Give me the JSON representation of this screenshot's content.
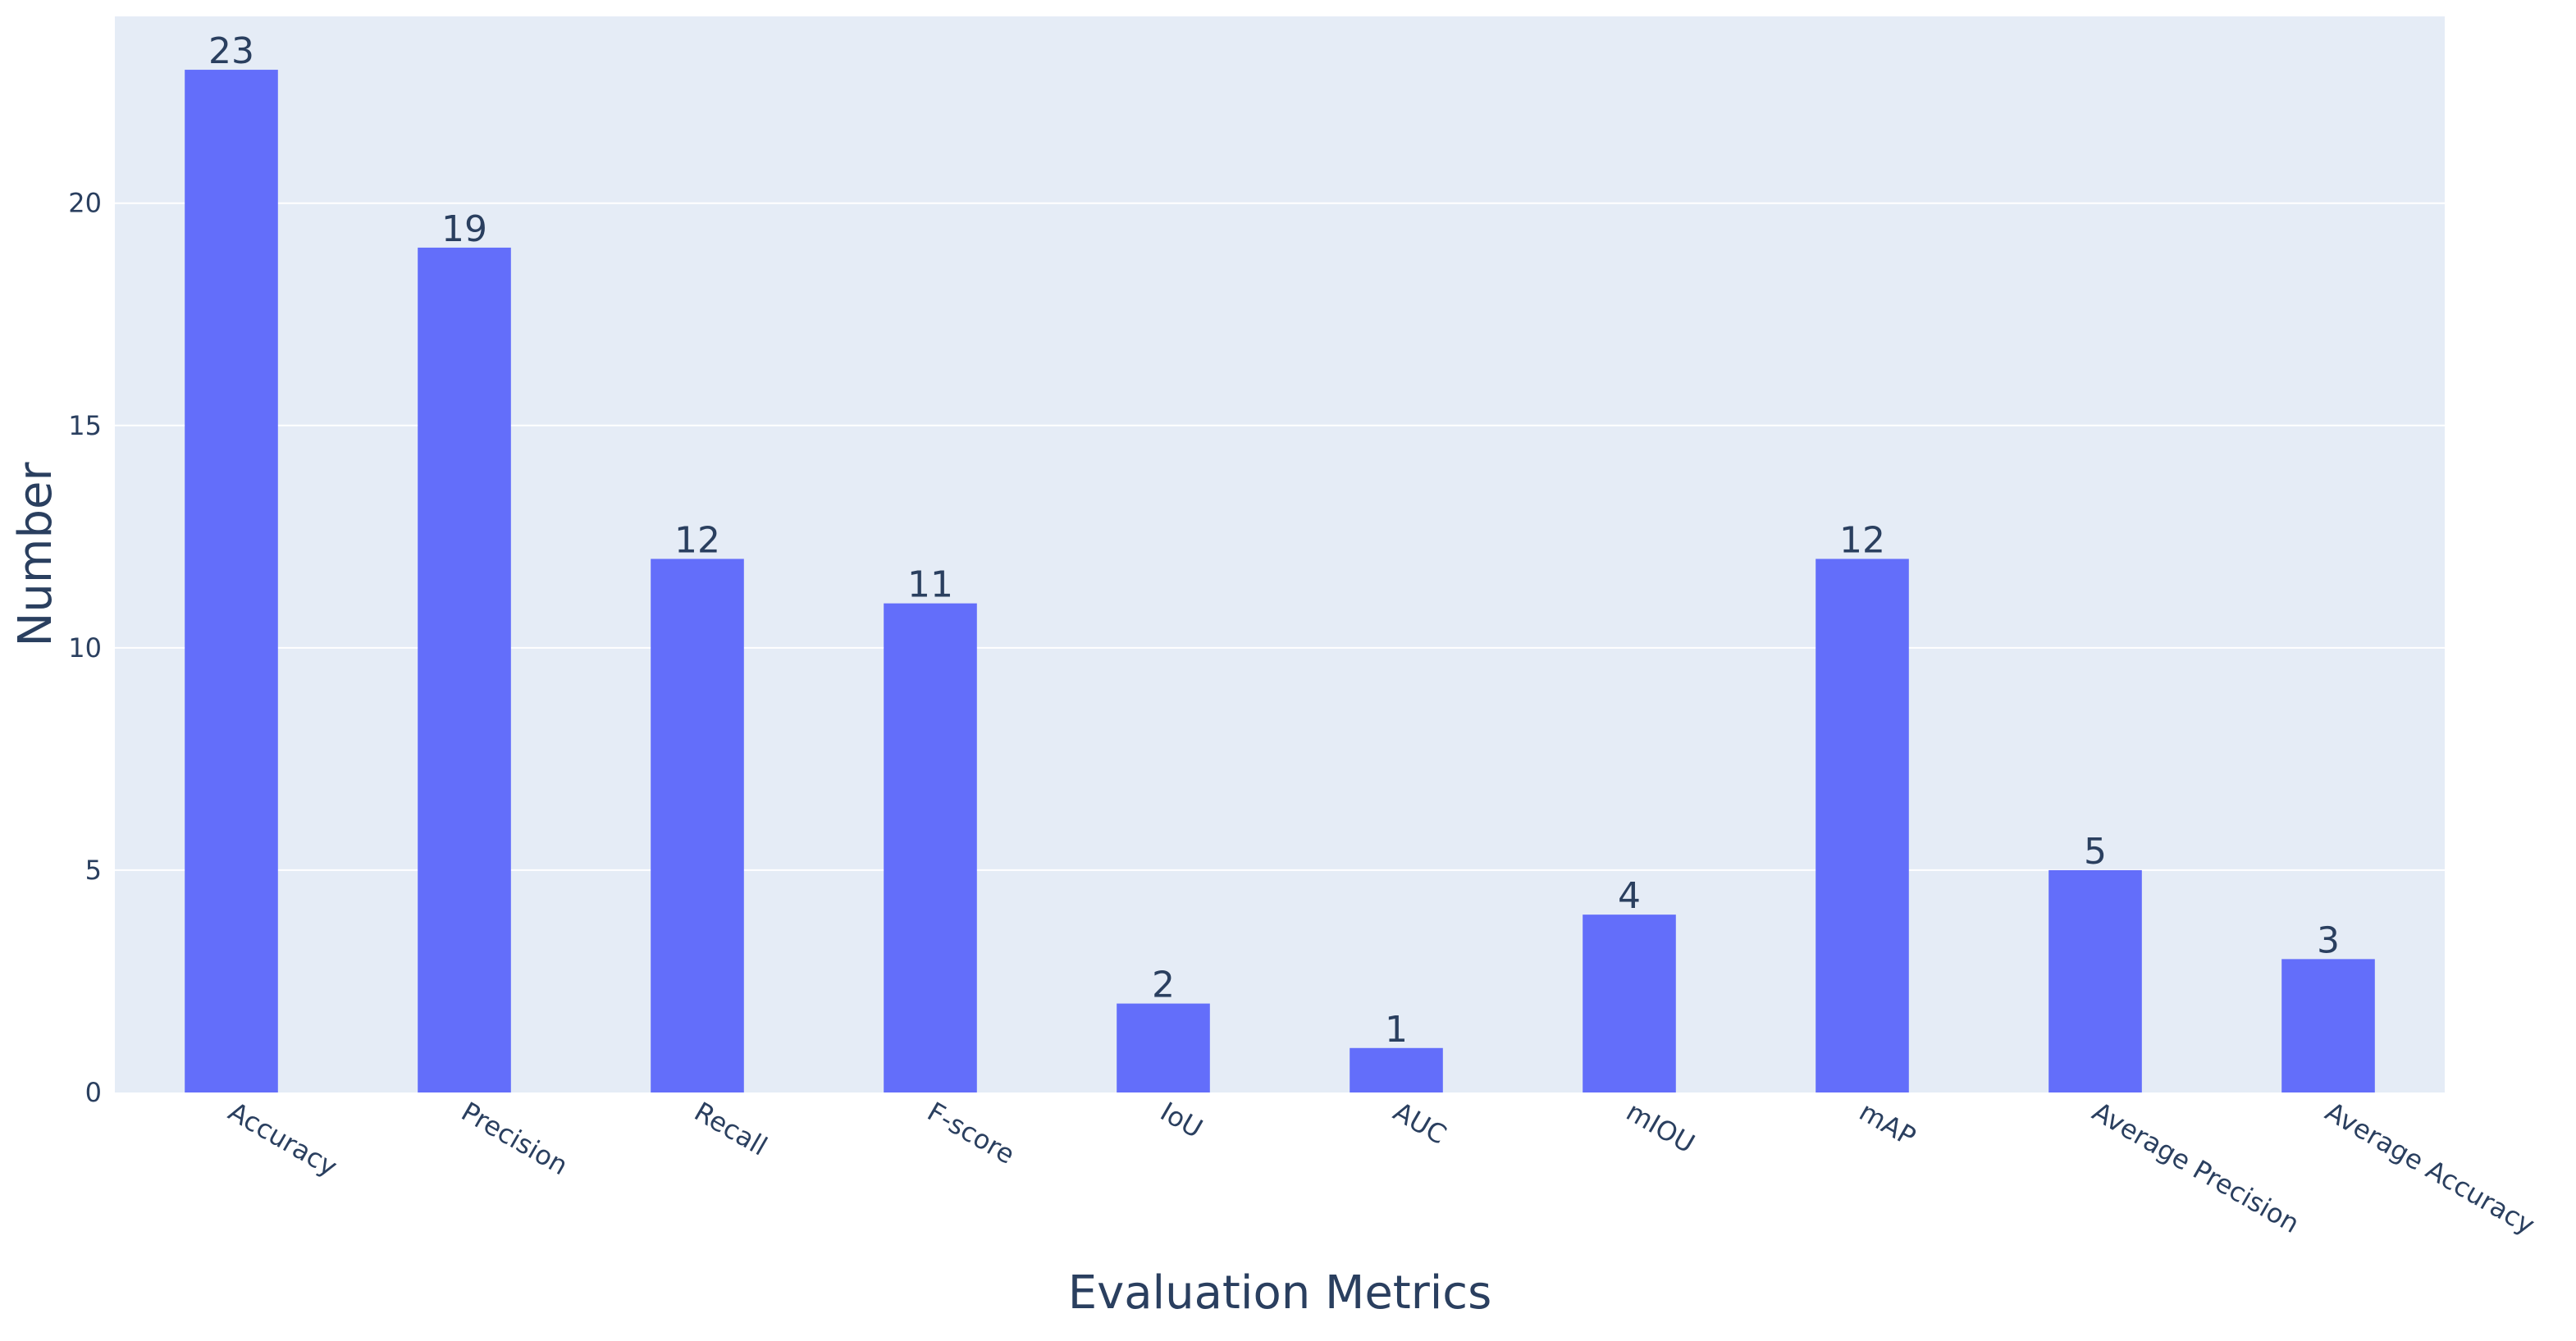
{
  "chart_data": {
    "type": "bar",
    "title": "",
    "xlabel": "Evaluation Metrics",
    "ylabel": "Number",
    "categories": [
      "Accuracy",
      "Precision",
      "Recall",
      "F-score",
      "IoU",
      "AUC",
      "mIOU",
      "mAP",
      "Average Precision",
      "Average Accuracy"
    ],
    "values": [
      23,
      19,
      12,
      11,
      2,
      1,
      4,
      12,
      5,
      3
    ],
    "ylim": [
      0,
      24.2
    ],
    "yticks": [
      0,
      5,
      10,
      15,
      20
    ],
    "grid": true,
    "legend": "none",
    "colors": {
      "bar": "#636efa",
      "plot_bg": "#e5ecf6",
      "grid": "#ffffff",
      "text": "#2a3f5f"
    }
  }
}
